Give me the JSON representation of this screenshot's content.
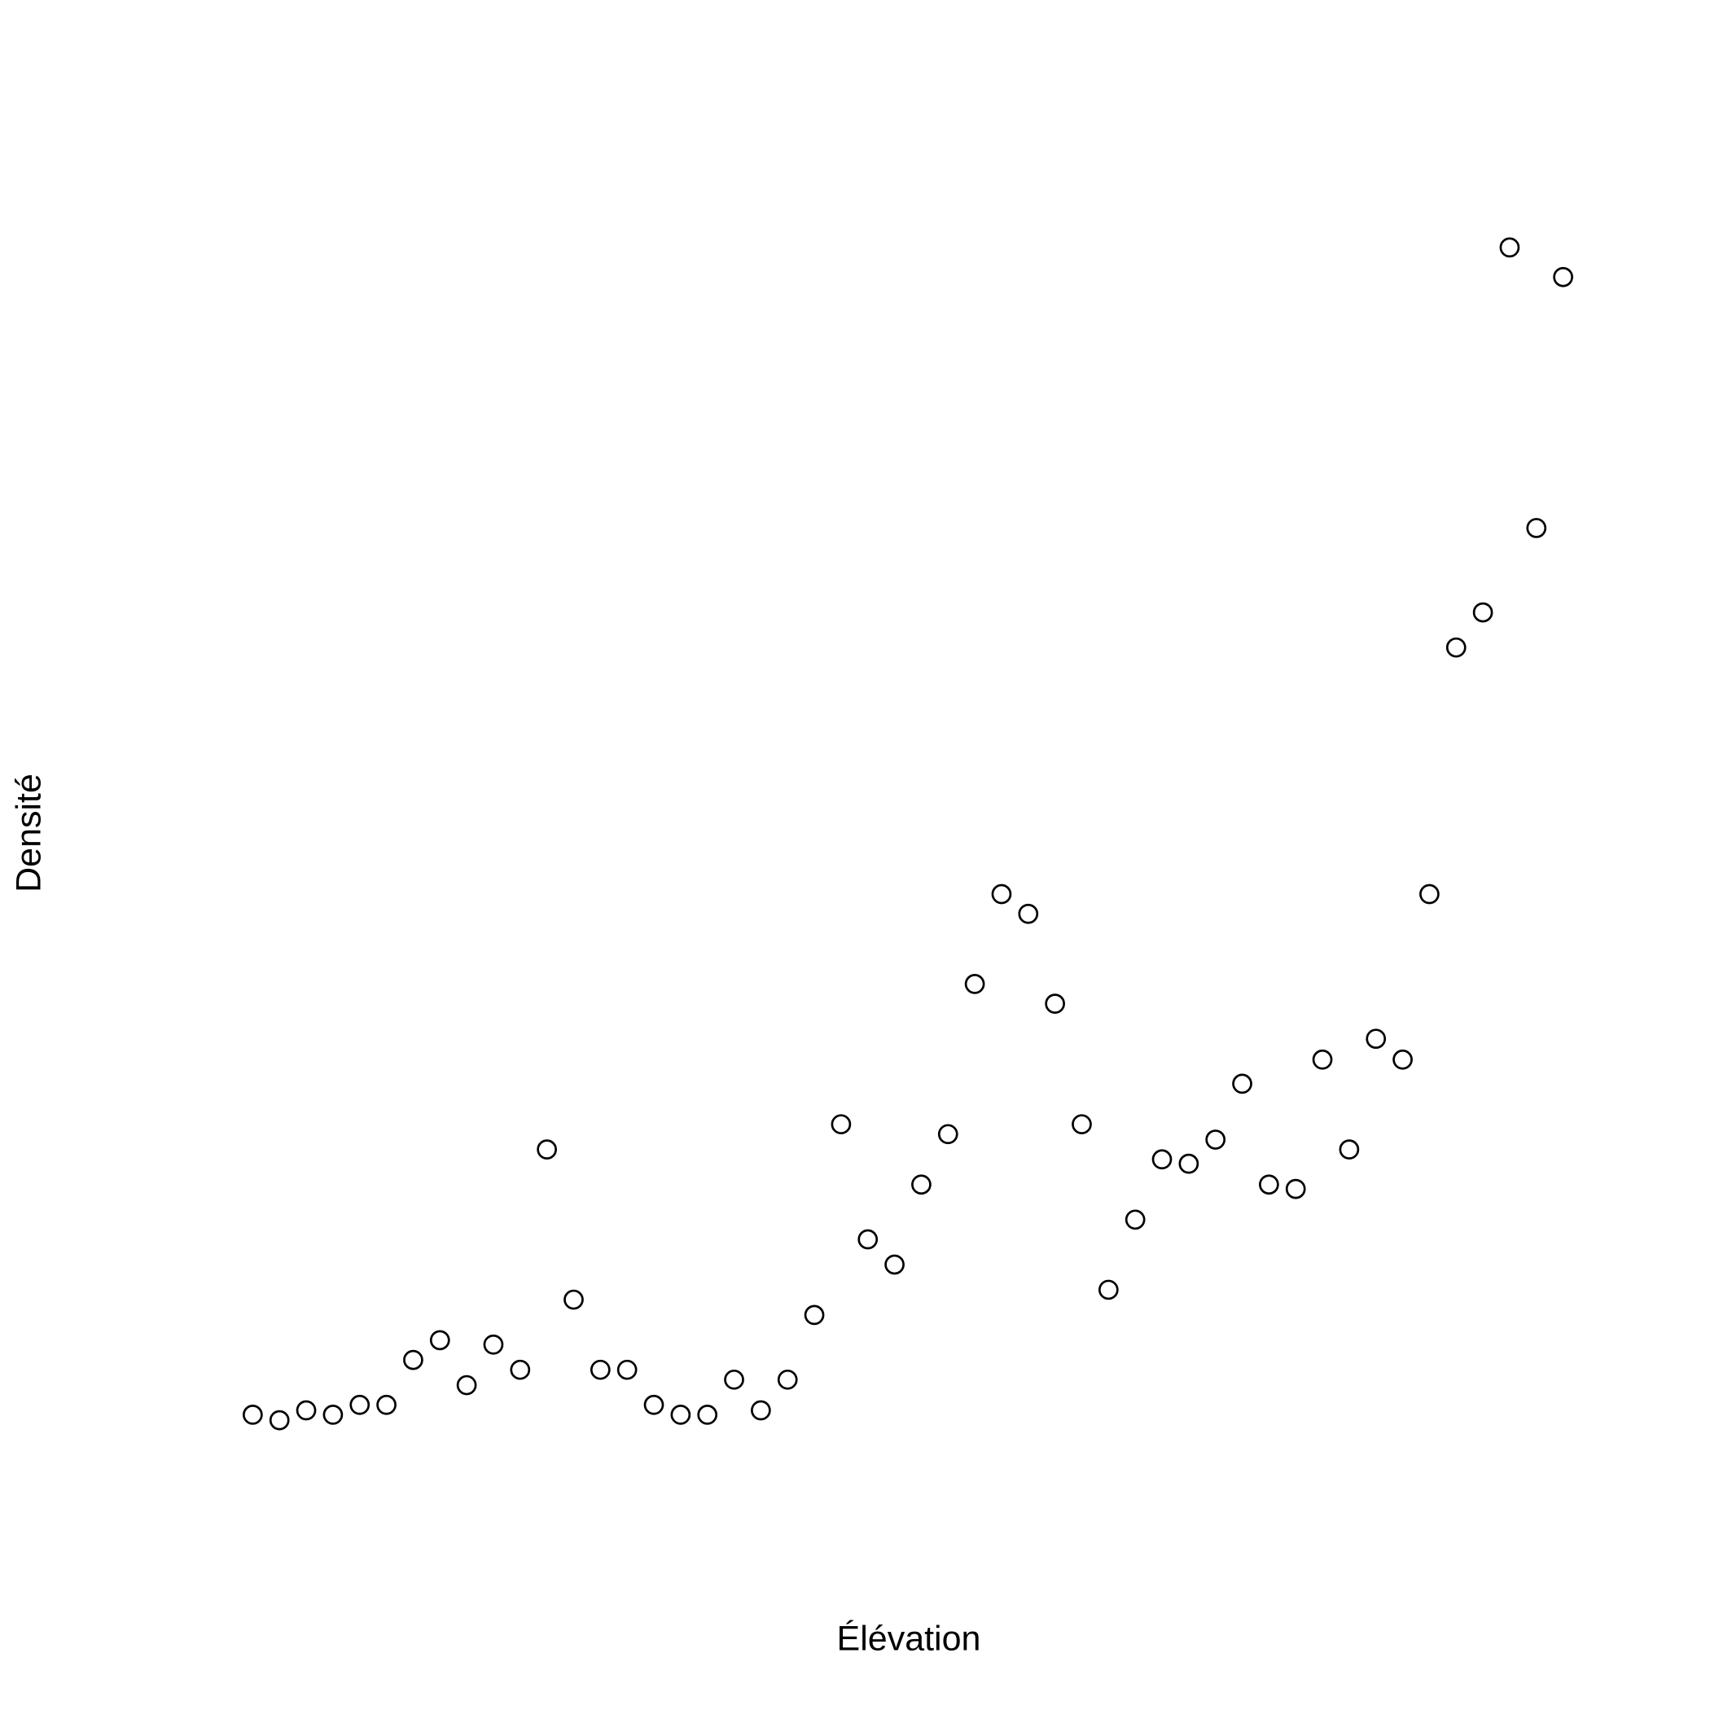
{
  "chart_data": {
    "type": "scatter",
    "x_label": "Élévation",
    "y_label": "Densité",
    "x": [
      1,
      2,
      3,
      4,
      5,
      6,
      7,
      8,
      9,
      10,
      11,
      12,
      13,
      14,
      15,
      16,
      17,
      18,
      19,
      20,
      21,
      22,
      23,
      24,
      25,
      26,
      27,
      28,
      29,
      30,
      31,
      32,
      33,
      34,
      35,
      36,
      37,
      38,
      39,
      40,
      41,
      42,
      43,
      44,
      45,
      46,
      47,
      48,
      49,
      50
    ],
    "values": [
      4.9,
      4.4,
      5.3,
      4.9,
      5.8,
      5.8,
      9.9,
      11.7,
      7.6,
      11.3,
      9.0,
      29.1,
      15.4,
      9.0,
      9.0,
      5.8,
      4.9,
      4.9,
      8.1,
      5.3,
      8.1,
      14.0,
      31.4,
      20.9,
      18.6,
      25.9,
      30.5,
      44.2,
      52.4,
      50.6,
      42.4,
      31.4,
      16.3,
      22.7,
      28.2,
      27.8,
      30.0,
      35.1,
      25.9,
      25.5,
      37.3,
      29.1,
      39.2,
      37.3,
      52.4,
      74.9,
      78.1,
      111.4,
      85.8,
      108.7
    ],
    "xlim": [
      -0.96,
      51.96
    ],
    "ylim": [
      0.1,
      115.7
    ],
    "color": "#000000"
  }
}
